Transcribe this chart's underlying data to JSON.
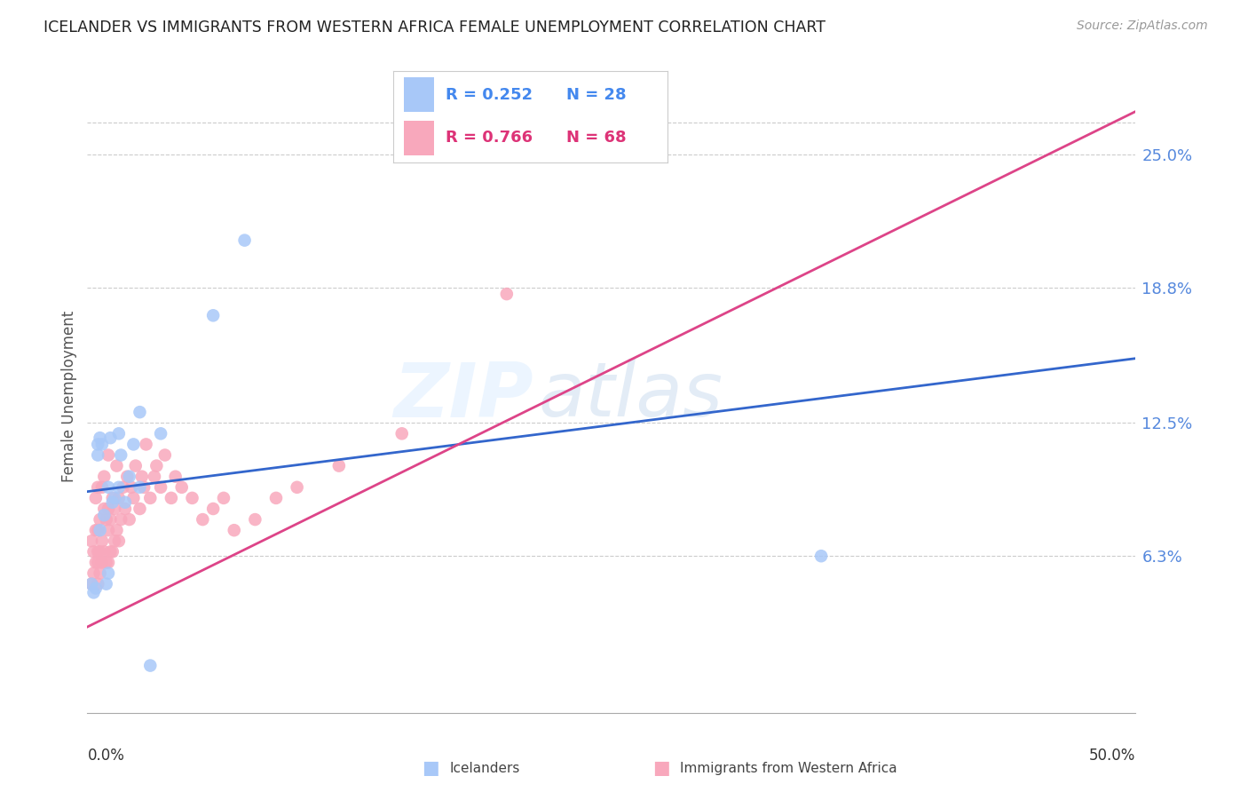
{
  "title": "ICELANDER VS IMMIGRANTS FROM WESTERN AFRICA FEMALE UNEMPLOYMENT CORRELATION CHART",
  "source": "Source: ZipAtlas.com",
  "ylabel": "Female Unemployment",
  "right_ytick_vals": [
    0.063,
    0.125,
    0.188,
    0.25
  ],
  "right_ytick_labels": [
    "6.3%",
    "12.5%",
    "18.8%",
    "25.0%"
  ],
  "xlim": [
    0.0,
    0.5
  ],
  "ylim": [
    -0.01,
    0.285
  ],
  "watermark_zip": "ZIP",
  "watermark_atlas": "atlas",
  "legend_blue_r": "0.252",
  "legend_blue_n": "28",
  "legend_pink_r": "0.766",
  "legend_pink_n": "68",
  "color_blue": "#A8C8F8",
  "color_pink": "#F8A8BC",
  "color_blue_line": "#3366CC",
  "color_pink_line": "#DD4488",
  "background": "#FFFFFF",
  "icelanders_x": [
    0.002,
    0.003,
    0.004,
    0.005,
    0.005,
    0.006,
    0.006,
    0.007,
    0.008,
    0.009,
    0.01,
    0.01,
    0.011,
    0.012,
    0.013,
    0.015,
    0.015,
    0.016,
    0.018,
    0.02,
    0.022,
    0.025,
    0.025,
    0.035,
    0.06,
    0.075,
    0.35,
    0.03
  ],
  "icelanders_y": [
    0.05,
    0.046,
    0.048,
    0.11,
    0.115,
    0.118,
    0.075,
    0.115,
    0.082,
    0.05,
    0.095,
    0.055,
    0.118,
    0.088,
    0.09,
    0.12,
    0.095,
    0.11,
    0.088,
    0.1,
    0.115,
    0.13,
    0.095,
    0.12,
    0.175,
    0.21,
    0.063,
    0.012
  ],
  "western_africa_x": [
    0.002,
    0.002,
    0.003,
    0.003,
    0.004,
    0.004,
    0.004,
    0.005,
    0.005,
    0.005,
    0.005,
    0.005,
    0.006,
    0.006,
    0.006,
    0.007,
    0.007,
    0.007,
    0.008,
    0.008,
    0.008,
    0.009,
    0.009,
    0.01,
    0.01,
    0.01,
    0.01,
    0.011,
    0.011,
    0.012,
    0.012,
    0.013,
    0.013,
    0.014,
    0.014,
    0.015,
    0.015,
    0.016,
    0.017,
    0.018,
    0.019,
    0.02,
    0.021,
    0.022,
    0.023,
    0.025,
    0.026,
    0.027,
    0.028,
    0.03,
    0.032,
    0.033,
    0.035,
    0.037,
    0.04,
    0.042,
    0.045,
    0.05,
    0.055,
    0.06,
    0.065,
    0.07,
    0.08,
    0.09,
    0.1,
    0.12,
    0.15,
    0.2
  ],
  "western_africa_y": [
    0.05,
    0.07,
    0.055,
    0.065,
    0.06,
    0.075,
    0.09,
    0.05,
    0.06,
    0.065,
    0.075,
    0.095,
    0.055,
    0.065,
    0.08,
    0.06,
    0.07,
    0.095,
    0.065,
    0.085,
    0.1,
    0.06,
    0.08,
    0.06,
    0.075,
    0.085,
    0.11,
    0.065,
    0.08,
    0.065,
    0.09,
    0.07,
    0.085,
    0.075,
    0.105,
    0.07,
    0.09,
    0.08,
    0.095,
    0.085,
    0.1,
    0.08,
    0.095,
    0.09,
    0.105,
    0.085,
    0.1,
    0.095,
    0.115,
    0.09,
    0.1,
    0.105,
    0.095,
    0.11,
    0.09,
    0.1,
    0.095,
    0.09,
    0.08,
    0.085,
    0.09,
    0.075,
    0.08,
    0.09,
    0.095,
    0.105,
    0.12,
    0.185
  ],
  "blue_line_x0": 0.0,
  "blue_line_y0": 0.093,
  "blue_line_x1": 0.5,
  "blue_line_y1": 0.155,
  "pink_line_x0": 0.0,
  "pink_line_y0": 0.03,
  "pink_line_x1": 0.5,
  "pink_line_y1": 0.27
}
